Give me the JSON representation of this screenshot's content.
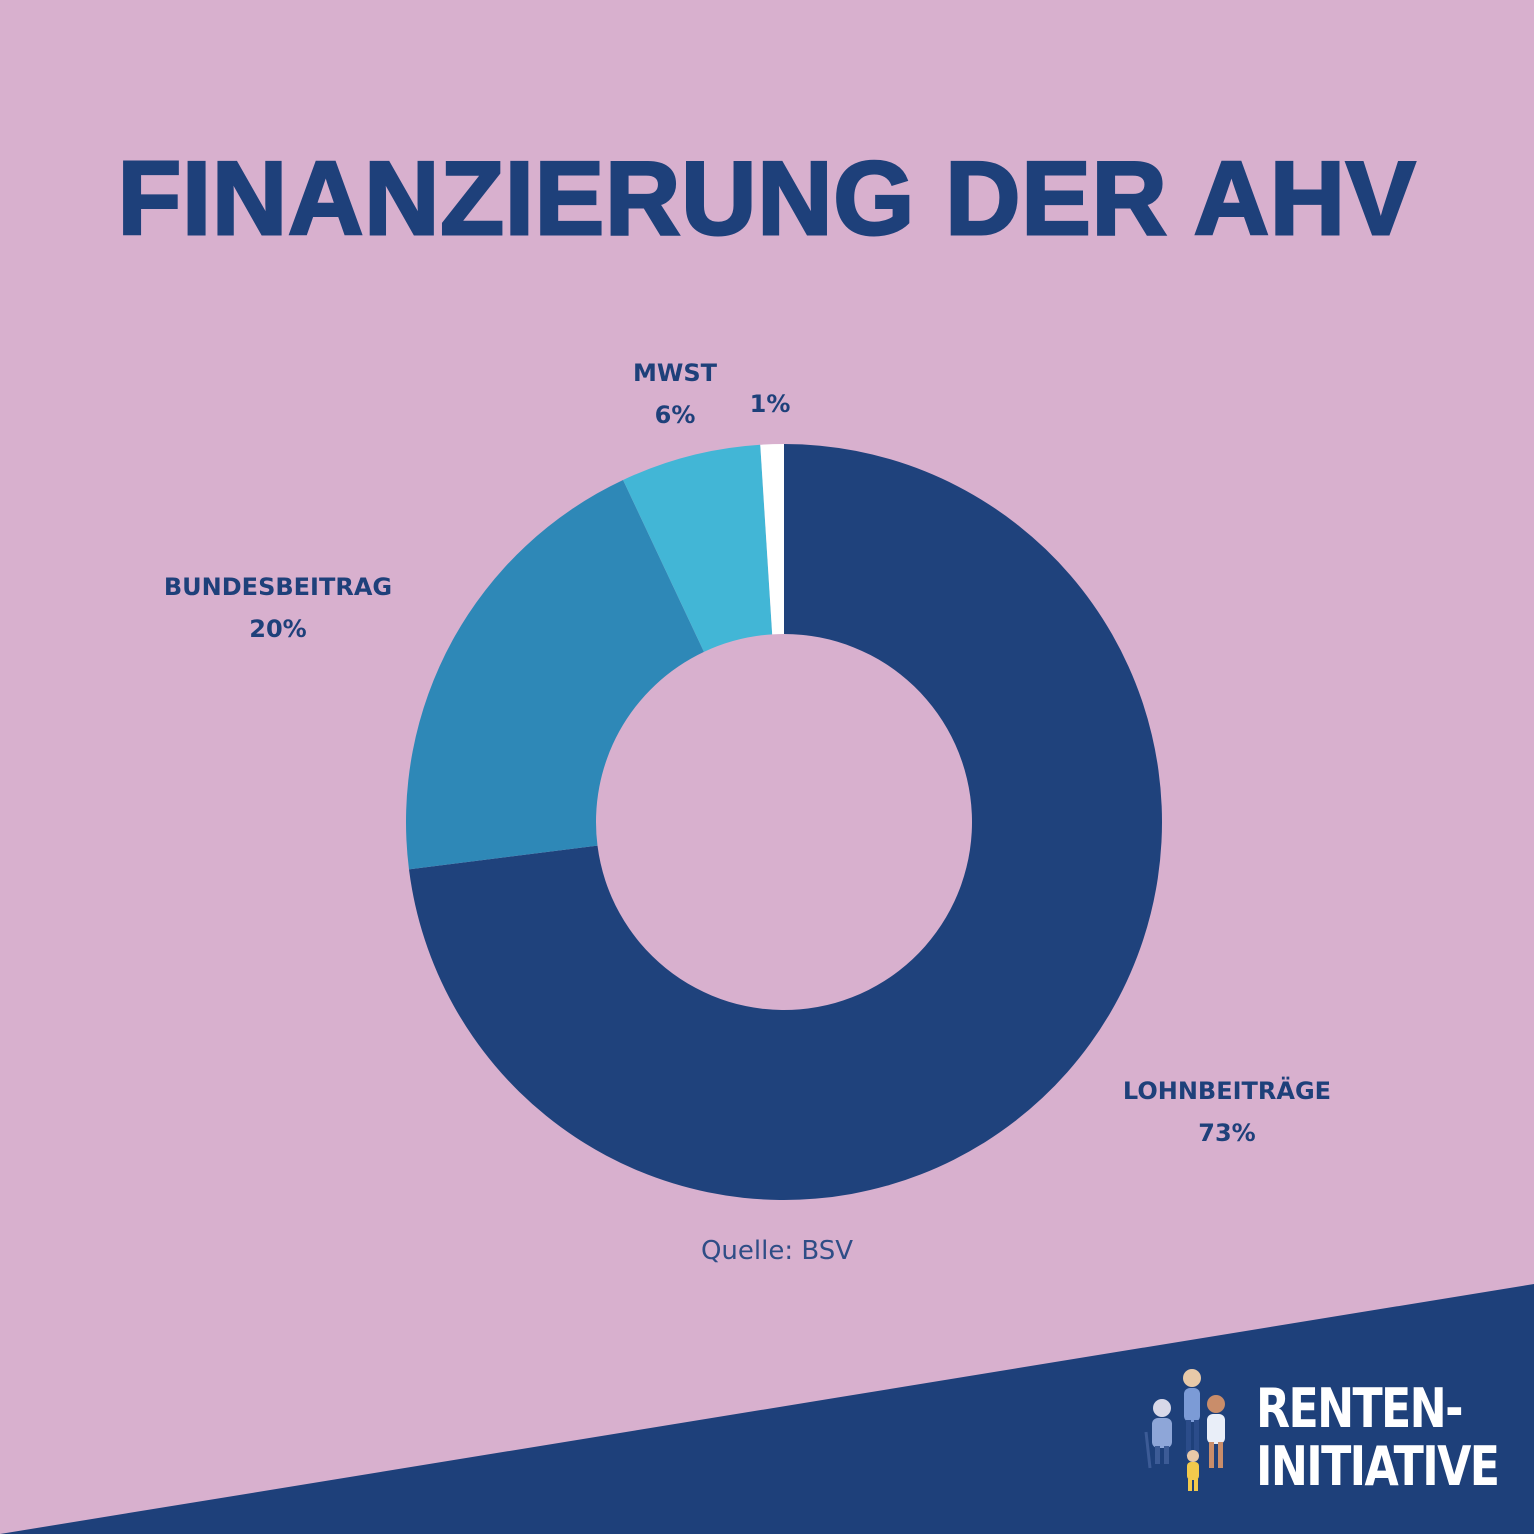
{
  "title": "FINANZIERUNG DER AHV",
  "source": "Quelle: BSV",
  "logo": {
    "line1": "RENTEN-",
    "line2": "INITIATIVE"
  },
  "colors": {
    "background": "#d8b0ce",
    "navy": "#1e407a",
    "lohnbeitraege": "#1f427c",
    "bundesbeitrag": "#2e88b7",
    "mwst": "#42b6d6",
    "other": "#ffffff"
  },
  "chart_data": {
    "type": "pie",
    "donut": true,
    "title": "FINANZIERUNG DER AHV",
    "series": [
      {
        "name": "LOHNBEITRÄGE",
        "value": 73,
        "label": "73%",
        "color": "#1f427c"
      },
      {
        "name": "BUNDESBEITRAG",
        "value": 20,
        "label": "20%",
        "color": "#2e88b7"
      },
      {
        "name": "MWST",
        "value": 6,
        "label": "6%",
        "color": "#42b6d6"
      },
      {
        "name": "",
        "value": 1,
        "label": "1%",
        "color": "#ffffff"
      }
    ]
  }
}
